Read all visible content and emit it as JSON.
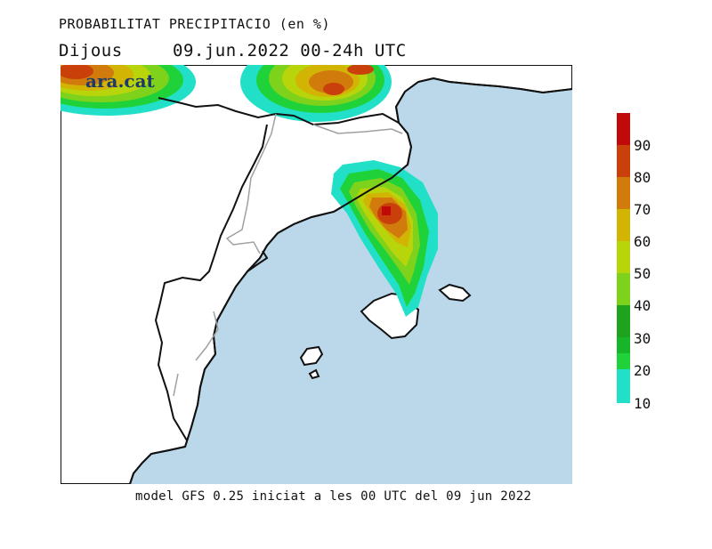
{
  "header": {
    "title": "PROBABILITAT PRECIPITACIO (en %)",
    "day": "Dijous",
    "period": "09.jun.2022 00-24h UTC"
  },
  "brand": {
    "logo_text": "ara.cat"
  },
  "footer": {
    "model_text": "model GFS 0.25 iniciat a les 00 UTC del 09 jun 2022"
  },
  "scale": {
    "labels": [
      "10",
      "20",
      "30",
      "40",
      "50",
      "60",
      "70",
      "80",
      "90"
    ],
    "colors": [
      "#22e0c8",
      "#1fd23a",
      "#16b52a",
      "#1ea31e",
      "#7fd21c",
      "#b8d40b",
      "#d2b405",
      "#d07b0b",
      "#c9400b",
      "#c00a0a"
    ]
  },
  "map": {
    "sea_color": "#bad8ea",
    "land_color": "#ffffff",
    "coast_color": "#111111",
    "border_color": "#a0a0a0"
  }
}
